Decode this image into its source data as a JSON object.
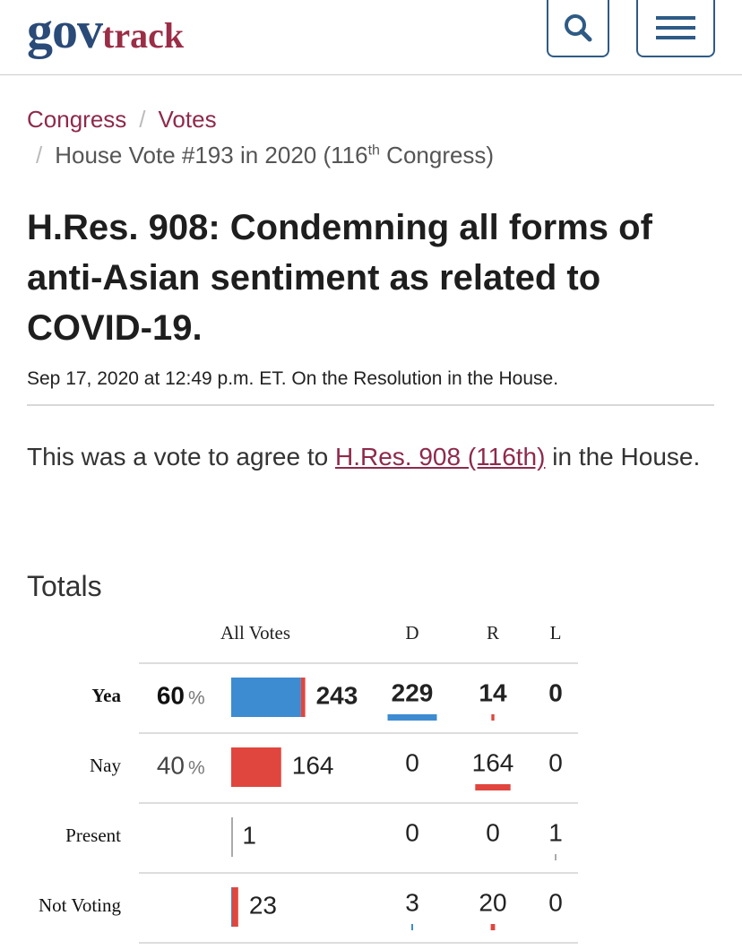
{
  "header": {
    "logo": [
      "gov",
      "track"
    ]
  },
  "breadcrumb": {
    "links": [
      "Congress",
      "Votes"
    ],
    "separator": "/",
    "current": {
      "before": "House Vote #193 in 2020 (116",
      "sup": "th",
      "after": " Congress)"
    }
  },
  "title": "H.Res. 908: Condemning all forms of anti-Asian sentiment as related to COVID-19.",
  "meta": "Sep 17, 2020 at 12:49 p.m. ET. On the Resolution in the House.",
  "summary": {
    "before": "This was a vote to agree to ",
    "link": "H.Res. 908 (116th)",
    "after": " in the House."
  },
  "totals": {
    "heading": "Totals",
    "table": {
      "columns": [
        "All Votes",
        "D",
        "R",
        "L"
      ],
      "percent_sign": "%",
      "party_colors": {
        "D": "#3d8bd1",
        "R": "#e0463e",
        "L": "#aaaaaa"
      },
      "rows": [
        {
          "label": "Yea",
          "percent": 60,
          "total": 243,
          "D": 229,
          "R": 14,
          "L": 0
        },
        {
          "label": "Nay",
          "percent": 40,
          "total": 164,
          "D": 0,
          "R": 164,
          "L": 0
        },
        {
          "label": "Present",
          "total": 1,
          "D": 0,
          "R": 0,
          "L": 1
        },
        {
          "label": "Not Voting",
          "total": 23,
          "D": 3,
          "R": 20,
          "L": 0
        }
      ]
    }
  }
}
